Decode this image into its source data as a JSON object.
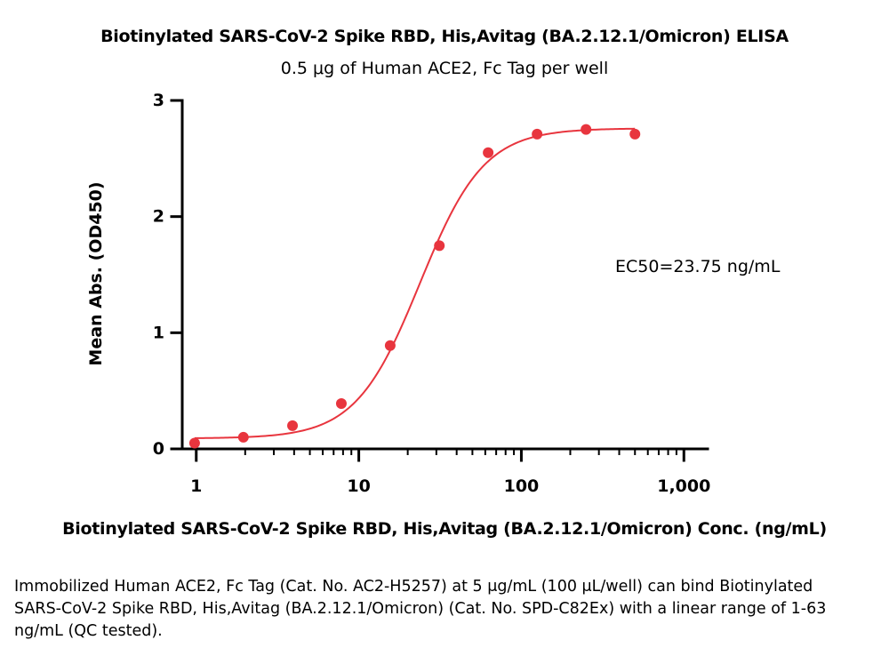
{
  "chart_data": {
    "type": "scatter",
    "title": "Biotinylated SARS-CoV-2 Spike RBD, His,Avitag (BA.2.12.1/Omicron) ELISA",
    "subtitle": "0.5 μg of Human ACE2, Fc Tag per well",
    "xlabel": "Biotinylated SARS-CoV-2 Spike RBD, His,Avitag (BA.2.12.1/Omicron) Conc. (ng/mL)",
    "ylabel": "Mean Abs. (OD450)",
    "x_scale": "log",
    "xlim": [
      0.82,
      1400
    ],
    "ylim": [
      0,
      3
    ],
    "x_ticks": [
      1,
      10,
      100,
      1000
    ],
    "x_tick_labels": [
      "1",
      "10",
      "100",
      "1,000"
    ],
    "y_ticks": [
      0,
      1,
      2,
      3
    ],
    "y_tick_labels": [
      "0",
      "1",
      "2",
      "3"
    ],
    "grid": false,
    "color": "#e8353e",
    "series": [
      {
        "x": [
          0.977,
          1.95,
          3.91,
          7.81,
          15.6,
          31.3,
          62.5,
          125,
          250,
          500
        ],
        "y": [
          0.05,
          0.1,
          0.2,
          0.39,
          0.89,
          1.75,
          2.55,
          2.71,
          2.75,
          2.71
        ]
      }
    ],
    "fit": {
      "model": "4PL",
      "bottom": 0.09,
      "top": 2.76,
      "ec50": 23.75,
      "hill": 2.2
    },
    "annotation": "EC50=23.75 ng/mL"
  },
  "caption": "Immobilized Human ACE2, Fc Tag (Cat. No. AC2-H5257) at 5 μg/mL (100 μL/well) can bind Biotinylated SARS-CoV-2 Spike RBD, His,Avitag (BA.2.12.1/Omicron) (Cat. No. SPD-C82Ex) with a linear range of 1-63 ng/mL (QC tested)."
}
